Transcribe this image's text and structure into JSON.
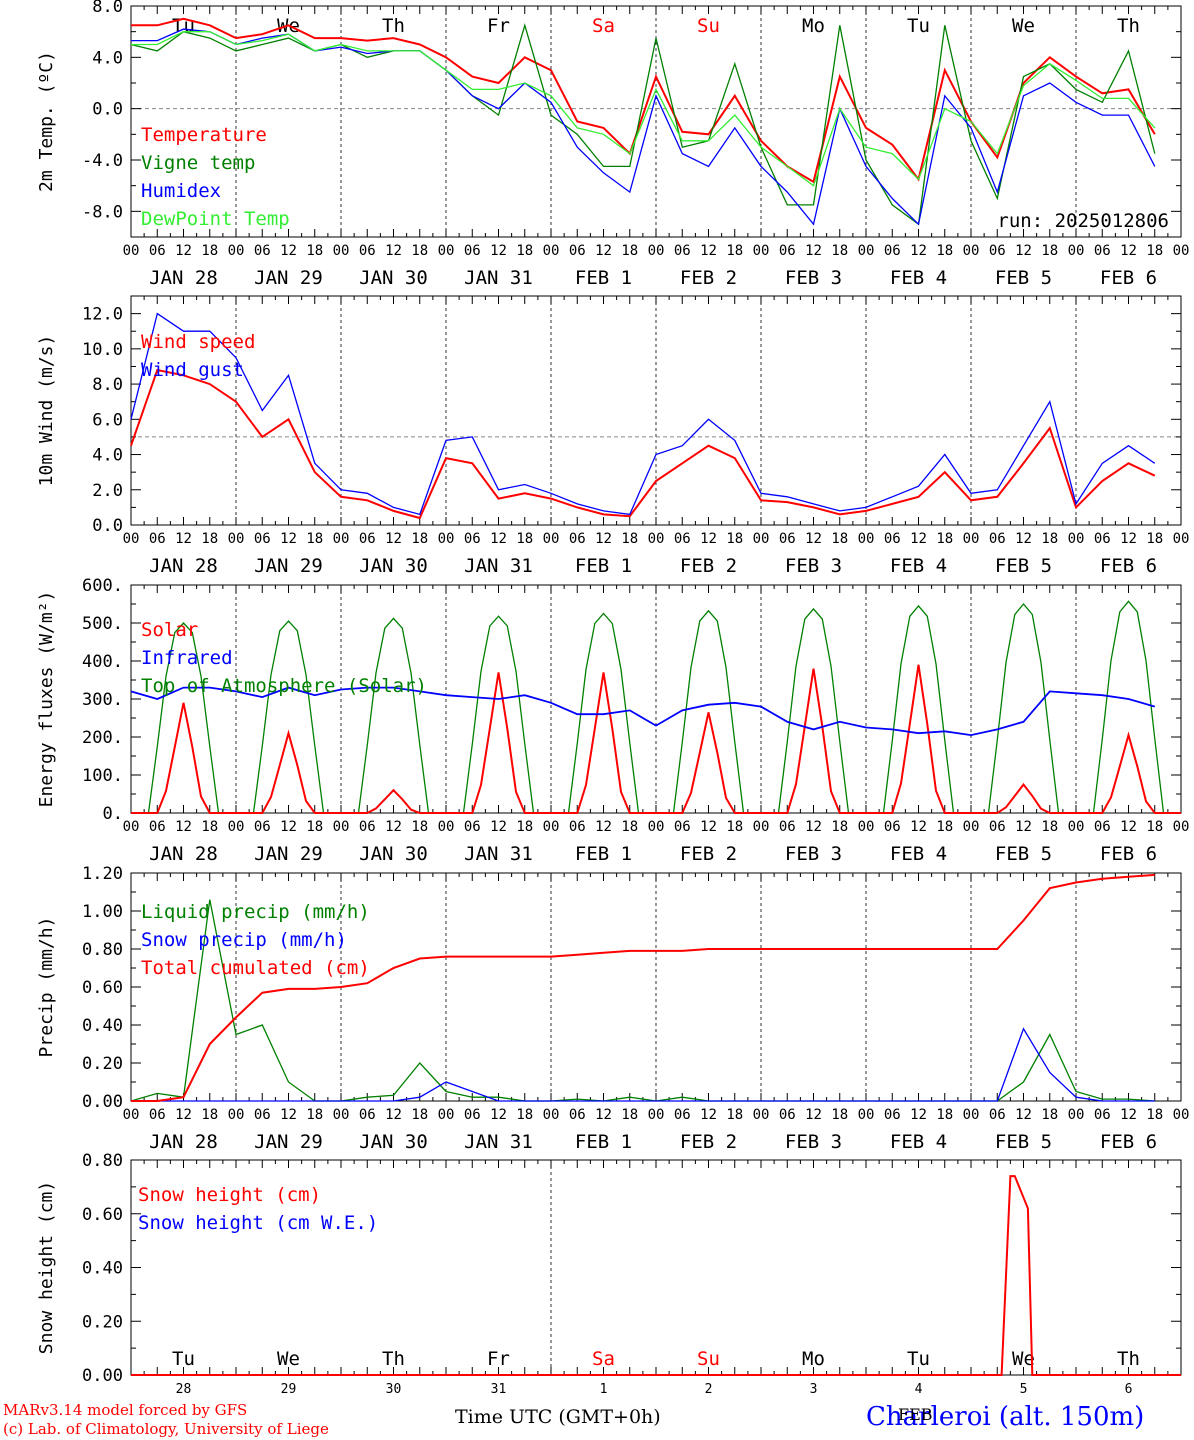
{
  "footer": {
    "model_line1": "MARv3.14 model forced by GFS",
    "model_line2": "(c) Lab. of Climatology, University of Liege",
    "xaxis_title": "Time UTC (GMT+0h)",
    "station": "Charleroi (alt. 150m)",
    "month": "FEB"
  },
  "colors": {
    "red": "#ff0000",
    "green": "#008000",
    "blue": "#0000ff",
    "lightgreen": "#33ee33",
    "grey": "#888888"
  },
  "days": {
    "weekdays": [
      "Tu",
      "We",
      "Th",
      "Fr",
      "Sa",
      "Su",
      "Mo",
      "Tu",
      "We",
      "Th"
    ],
    "weekend_flags": [
      false,
      false,
      false,
      false,
      true,
      true,
      false,
      false,
      false,
      false
    ],
    "dates": [
      "JAN 28",
      "JAN 29",
      "JAN 30",
      "JAN 31",
      "FEB  1",
      "FEB  2",
      "FEB  3",
      "FEB  4",
      "FEB  5",
      "FEB  6"
    ],
    "day_numbers": [
      "28",
      "29",
      "30",
      "31",
      "1",
      "2",
      "3",
      "4",
      "5",
      "6"
    ],
    "hour_ticks": [
      "00",
      "06",
      "12",
      "18"
    ],
    "last_tick": "00"
  },
  "chart_data": [
    {
      "type": "line",
      "ylabel": "2m Temp. (ºC)",
      "ylim": [
        -10,
        8
      ],
      "yticks": [
        "8.0",
        "4.0",
        "0.0",
        "-4.0",
        "-8.0"
      ],
      "ytick_values": [
        8,
        4,
        0,
        -4,
        -8
      ],
      "reference_line": 0,
      "run_label": "run: 2025012806",
      "legend": [
        "Temperature",
        "Vigne temp",
        "Humidex",
        "DewPoint Temp"
      ],
      "x_hours": [
        0,
        6,
        12,
        18,
        24,
        30,
        36,
        42,
        48,
        54,
        60,
        66,
        72,
        78,
        84,
        90,
        96,
        102,
        108,
        114,
        120,
        126,
        132,
        138,
        144,
        150,
        156,
        162,
        168,
        174,
        180,
        186,
        192,
        198,
        204,
        210,
        216,
        222,
        228,
        234
      ],
      "series": [
        {
          "name": "Temperature",
          "color": "red",
          "values": [
            6.5,
            6.5,
            7,
            6.5,
            5.5,
            5.8,
            6.5,
            5.5,
            5.5,
            5.3,
            5.5,
            5,
            4,
            2.5,
            2,
            4,
            3,
            -1,
            -1.5,
            -3.5,
            2.5,
            -1.8,
            -2,
            1,
            -2.5,
            -4.5,
            -5.7,
            2.5,
            -1.5,
            -2.8,
            -5.5,
            3,
            -1,
            -3.8,
            2,
            4,
            2.5,
            1.2,
            1.5,
            -2
          ]
        },
        {
          "name": "Vigne temp",
          "color": "green",
          "values": [
            5,
            4.5,
            6,
            5.5,
            4.5,
            5,
            5.5,
            4.5,
            5,
            4,
            4.5,
            4.5,
            3,
            1,
            -0.5,
            6.5,
            -0.5,
            -2,
            -4.5,
            -4.5,
            5.5,
            -3,
            -2.5,
            3.5,
            -3,
            -7.5,
            -7.5,
            6.5,
            -4,
            -7.5,
            -9,
            6.5,
            -2.5,
            -7,
            2.5,
            3.5,
            1.5,
            0.5,
            4.5,
            -3.5
          ]
        },
        {
          "name": "Humidex",
          "color": "blue",
          "values": [
            5.3,
            5.3,
            6.2,
            6,
            5,
            5.5,
            5.8,
            4.5,
            4.8,
            4.3,
            4.5,
            4.5,
            3,
            1,
            0,
            2,
            0.5,
            -3,
            -5,
            -6.5,
            1,
            -3.5,
            -4.5,
            -1.5,
            -4.5,
            -6.5,
            -9,
            0,
            -4.5,
            -7,
            -9,
            1,
            -1.5,
            -6.5,
            1,
            2,
            0.5,
            -0.5,
            -0.5,
            -4.5
          ]
        },
        {
          "name": "DewPoint Temp",
          "color": "lightgreen",
          "values": [
            5,
            5,
            6,
            6,
            5,
            5.3,
            5.8,
            4.5,
            5,
            4.5,
            4.5,
            4.5,
            3,
            1.5,
            1.5,
            2,
            1,
            -1.5,
            -2,
            -3.5,
            1.5,
            -2.5,
            -2.5,
            -0.5,
            -3,
            -4.5,
            -6,
            0,
            -3,
            -3.5,
            -5.5,
            0,
            -1,
            -3.5,
            1.8,
            3.5,
            2.2,
            0.8,
            0.8,
            -1.5
          ]
        }
      ]
    },
    {
      "type": "line",
      "ylabel": "10m Wind (m/s)",
      "ylim": [
        0,
        13
      ],
      "yticks": [
        "12.0",
        "10.0",
        "8.0",
        "6.0",
        "4.0",
        "2.0",
        "0.0"
      ],
      "ytick_values": [
        12,
        10,
        8,
        6,
        4,
        2,
        0
      ],
      "reference_line": 5,
      "legend": [
        "Wind speed",
        "Wind gust"
      ],
      "x_hours": [
        0,
        6,
        12,
        18,
        24,
        30,
        36,
        42,
        48,
        54,
        60,
        66,
        72,
        78,
        84,
        90,
        96,
        102,
        108,
        114,
        120,
        126,
        132,
        138,
        144,
        150,
        156,
        162,
        168,
        174,
        180,
        186,
        192,
        198,
        204,
        210,
        216,
        222,
        228,
        234
      ],
      "series": [
        {
          "name": "Wind speed",
          "color": "red",
          "values": [
            4.5,
            8.8,
            8.5,
            8,
            7,
            5,
            6,
            3,
            1.6,
            1.4,
            0.8,
            0.4,
            3.8,
            3.5,
            1.5,
            1.8,
            1.5,
            1,
            0.6,
            0.5,
            2.5,
            3.5,
            4.5,
            3.8,
            1.4,
            1.3,
            1,
            0.6,
            0.8,
            1.2,
            1.6,
            3,
            1.4,
            1.6,
            3.5,
            5.5,
            1,
            2.5,
            3.5,
            2.8
          ]
        },
        {
          "name": "Wind gust",
          "color": "blue",
          "values": [
            6,
            12,
            11,
            11,
            9.5,
            6.5,
            8.5,
            3.5,
            2,
            1.8,
            1,
            0.6,
            4.8,
            5,
            2,
            2.3,
            1.8,
            1.2,
            0.8,
            0.6,
            4,
            4.5,
            6,
            4.8,
            1.8,
            1.6,
            1.2,
            0.8,
            1,
            1.6,
            2.2,
            4,
            1.8,
            2,
            4.5,
            7,
            1.2,
            3.5,
            4.5,
            3.5
          ]
        }
      ]
    },
    {
      "type": "line",
      "ylabel": "Energy fluxes (W/m²)",
      "ylim": [
        0,
        600
      ],
      "yticks": [
        "600.",
        "500.",
        "400.",
        "300.",
        "200.",
        "100.",
        "0."
      ],
      "ytick_values": [
        600,
        500,
        400,
        300,
        200,
        100,
        0
      ],
      "legend": [
        "Solar",
        "Infrared",
        "Top of Atmosphere (Solar)"
      ],
      "daily_peaks": {
        "Solar": [
          290,
          210,
          60,
          370,
          370,
          265,
          380,
          390,
          75,
          205
        ],
        "Top of Atmosphere (Solar)": [
          500,
          505,
          512,
          518,
          525,
          532,
          537,
          545,
          550,
          557
        ]
      },
      "infrared_x_hours": [
        0,
        6,
        12,
        18,
        24,
        30,
        36,
        42,
        48,
        54,
        60,
        66,
        72,
        78,
        84,
        90,
        96,
        102,
        108,
        114,
        120,
        126,
        132,
        138,
        144,
        150,
        156,
        162,
        168,
        174,
        180,
        186,
        192,
        198,
        204,
        210,
        216,
        222,
        228,
        234
      ],
      "infrared_values": [
        320,
        300,
        330,
        330,
        320,
        305,
        330,
        310,
        325,
        330,
        330,
        320,
        310,
        305,
        300,
        310,
        290,
        260,
        260,
        270,
        230,
        270,
        285,
        290,
        280,
        240,
        220,
        240,
        225,
        220,
        210,
        215,
        205,
        220,
        240,
        320,
        315,
        310,
        300,
        280
      ]
    },
    {
      "type": "line",
      "ylabel": "Precip (mm/h)",
      "ylim": [
        0,
        1.2
      ],
      "yticks": [
        "1.20",
        "1.00",
        "0.80",
        "0.60",
        "0.40",
        "0.20",
        "0.00"
      ],
      "ytick_values": [
        1.2,
        1,
        0.8,
        0.6,
        0.4,
        0.2,
        0
      ],
      "legend": [
        "Liquid precip (mm/h)",
        "Snow precip (mm/h)",
        "Total cumulated (cm)"
      ],
      "x_hours": [
        0,
        6,
        12,
        18,
        24,
        30,
        36,
        42,
        48,
        54,
        60,
        66,
        72,
        78,
        84,
        90,
        96,
        102,
        108,
        114,
        120,
        126,
        132,
        138,
        144,
        150,
        156,
        162,
        168,
        174,
        180,
        186,
        192,
        198,
        204,
        210,
        216,
        222,
        228,
        234
      ],
      "series": [
        {
          "name": "Liquid precip (mm/h)",
          "color": "green",
          "values": [
            0,
            0.04,
            0.02,
            1.06,
            0.35,
            0.4,
            0.1,
            0,
            0,
            0.02,
            0.03,
            0.2,
            0.05,
            0.02,
            0.02,
            0,
            0,
            0.01,
            0,
            0.02,
            0,
            0.02,
            0,
            0,
            0,
            0,
            0,
            0,
            0,
            0,
            0,
            0,
            0,
            0,
            0.1,
            0.35,
            0.05,
            0.01,
            0.01,
            0
          ]
        },
        {
          "name": "Snow precip (mm/h)",
          "color": "blue",
          "values": [
            0,
            0,
            0,
            0,
            0,
            0,
            0,
            0,
            0,
            0,
            0,
            0.02,
            0.1,
            0.05,
            0,
            0,
            0,
            0,
            0,
            0,
            0,
            0,
            0,
            0,
            0,
            0,
            0,
            0,
            0,
            0,
            0,
            0,
            0,
            0,
            0.38,
            0.15,
            0.02,
            0,
            0,
            0
          ]
        },
        {
          "name": "Total cumulated (cm)",
          "color": "red",
          "values": [
            0,
            0,
            0.02,
            0.3,
            0.44,
            0.57,
            0.59,
            0.59,
            0.6,
            0.62,
            0.7,
            0.75,
            0.76,
            0.76,
            0.76,
            0.76,
            0.76,
            0.77,
            0.78,
            0.79,
            0.79,
            0.79,
            0.8,
            0.8,
            0.8,
            0.8,
            0.8,
            0.8,
            0.8,
            0.8,
            0.8,
            0.8,
            0.8,
            0.8,
            0.95,
            1.12,
            1.15,
            1.17,
            1.18,
            1.19
          ]
        }
      ]
    },
    {
      "type": "line",
      "ylabel": "Snow height (cm)",
      "ylim": [
        0,
        0.8
      ],
      "yticks": [
        "0.80",
        "0.60",
        "0.40",
        "0.20",
        "0.00"
      ],
      "ytick_values": [
        0.8,
        0.6,
        0.4,
        0.2,
        0
      ],
      "legend": [
        "Snow height (cm)",
        "Snow height (cm W.E.)"
      ],
      "series": [
        {
          "name": "Snow height (cm)",
          "color": "red",
          "x_hours": [
            0,
            199,
            201,
            202,
            205,
            206,
            240
          ],
          "values": [
            0,
            0,
            0.74,
            0.74,
            0.62,
            0,
            0
          ]
        }
      ]
    }
  ]
}
